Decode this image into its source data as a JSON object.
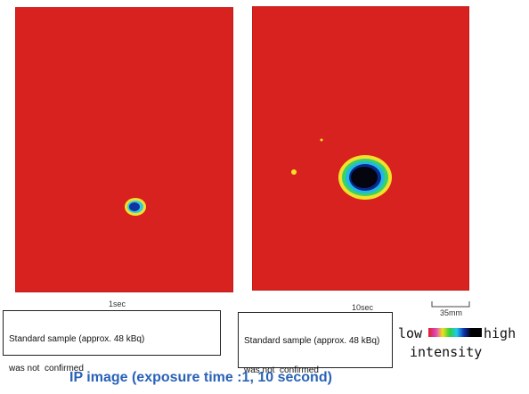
{
  "panels": [
    {
      "label": "1sec",
      "caption": [
        "Standard sample (approx. 48 kBq)",
        "was not  confirmed"
      ]
    },
    {
      "label": "10sec",
      "caption": [
        "Standard sample (approx. 48 kBq)",
        "was not  confirmed"
      ]
    }
  ],
  "scale_bar": "35mm",
  "legend": {
    "low": "low",
    "high": "high",
    "quantity": "intensity"
  },
  "title": "IP image (exposure time :1, 10 second)"
}
